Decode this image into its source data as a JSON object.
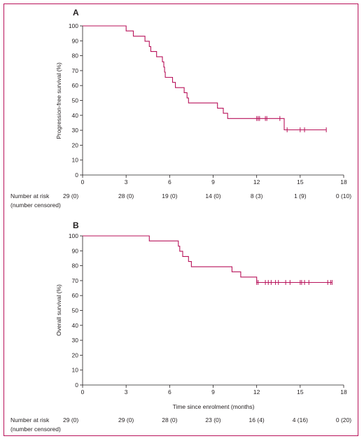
{
  "chart_data": [
    {
      "type": "line",
      "panel_label": "A",
      "xlabel": "",
      "ylabel": "Progression-free survival (%)",
      "xlim": [
        0,
        18
      ],
      "ylim": [
        0,
        100
      ],
      "x_ticks": [
        0,
        3,
        6,
        9,
        12,
        15,
        18
      ],
      "y_ticks": [
        0,
        10,
        20,
        30,
        40,
        50,
        60,
        70,
        80,
        90,
        100
      ],
      "series": [
        {
          "color": "#b8125a",
          "step_points": [
            [
              0,
              100
            ],
            [
              3.0,
              100
            ],
            [
              3.0,
              96.6
            ],
            [
              3.5,
              96.6
            ],
            [
              3.5,
              93.1
            ],
            [
              4.3,
              93.1
            ],
            [
              4.3,
              89.7
            ],
            [
              4.6,
              89.7
            ],
            [
              4.6,
              86.2
            ],
            [
              4.7,
              86.2
            ],
            [
              4.7,
              82.8
            ],
            [
              5.1,
              82.8
            ],
            [
              5.1,
              79.3
            ],
            [
              5.5,
              79.3
            ],
            [
              5.5,
              75.9
            ],
            [
              5.6,
              75.9
            ],
            [
              5.6,
              72.4
            ],
            [
              5.65,
              72.4
            ],
            [
              5.65,
              69.0
            ],
            [
              5.7,
              69.0
            ],
            [
              5.7,
              65.5
            ],
            [
              6.2,
              65.5
            ],
            [
              6.2,
              62.1
            ],
            [
              6.4,
              62.1
            ],
            [
              6.4,
              58.6
            ],
            [
              7.0,
              58.6
            ],
            [
              7.0,
              55.2
            ],
            [
              7.2,
              55.2
            ],
            [
              7.2,
              51.7
            ],
            [
              7.3,
              51.7
            ],
            [
              7.3,
              48.3
            ],
            [
              9.3,
              48.3
            ],
            [
              9.3,
              44.8
            ],
            [
              9.7,
              44.8
            ],
            [
              9.7,
              41.4
            ],
            [
              10.0,
              41.4
            ],
            [
              10.0,
              37.9
            ],
            [
              13.9,
              37.9
            ],
            [
              13.9,
              30.3
            ],
            [
              16.8,
              30.3
            ]
          ],
          "censor_times": [
            12.0,
            12.1,
            12.2,
            12.6,
            12.7,
            13.6,
            14.1,
            15.0,
            15.3,
            16.8
          ],
          "censor_values": [
            37.9,
            37.9,
            37.9,
            37.9,
            37.9,
            37.9,
            30.3,
            30.3,
            30.3,
            30.3
          ]
        }
      ],
      "risk_table": {
        "label_line1": "Number at risk",
        "label_line2": "(number censored)",
        "times": [
          0,
          3,
          6,
          9,
          12,
          15,
          18
        ],
        "values": [
          "29 (0)",
          "28 (0)",
          "19 (0)",
          "14 (0)",
          "8 (3)",
          "1 (9)",
          "0 (10)"
        ]
      }
    },
    {
      "type": "line",
      "panel_label": "B",
      "xlabel": "Time since enrolment (months)",
      "ylabel": "Overall survival (%)",
      "xlim": [
        0,
        18
      ],
      "ylim": [
        0,
        100
      ],
      "x_ticks": [
        0,
        3,
        6,
        9,
        12,
        15,
        18
      ],
      "y_ticks": [
        0,
        10,
        20,
        30,
        40,
        50,
        60,
        70,
        80,
        90,
        100
      ],
      "series": [
        {
          "color": "#b8125a",
          "step_points": [
            [
              0,
              100
            ],
            [
              4.6,
              100
            ],
            [
              4.6,
              96.6
            ],
            [
              6.6,
              96.6
            ],
            [
              6.6,
              93.1
            ],
            [
              6.7,
              93.1
            ],
            [
              6.7,
              89.7
            ],
            [
              6.9,
              89.7
            ],
            [
              6.9,
              86.2
            ],
            [
              7.3,
              86.2
            ],
            [
              7.3,
              82.8
            ],
            [
              7.5,
              82.8
            ],
            [
              7.5,
              79.3
            ],
            [
              10.3,
              79.3
            ],
            [
              10.3,
              75.9
            ],
            [
              10.9,
              75.9
            ],
            [
              10.9,
              72.4
            ],
            [
              12.0,
              72.4
            ],
            [
              12.0,
              68.8
            ],
            [
              17.2,
              68.8
            ]
          ],
          "censor_times": [
            12.0,
            12.1,
            12.6,
            12.8,
            13.0,
            13.3,
            13.5,
            14.0,
            14.3,
            15.0,
            15.1,
            15.3,
            15.6,
            16.9,
            17.1,
            17.2
          ],
          "censor_values": [
            68.8,
            68.8,
            68.8,
            68.8,
            68.8,
            68.8,
            68.8,
            68.8,
            68.8,
            68.8,
            68.8,
            68.8,
            68.8,
            68.8,
            68.8,
            68.8
          ]
        }
      ],
      "risk_table": {
        "label_line1": "Number at risk",
        "label_line2": "(number censored)",
        "times": [
          0,
          3,
          6,
          9,
          12,
          15,
          18
        ],
        "values": [
          "29 (0)",
          "29 (0)",
          "28 (0)",
          "23 (0)",
          "16 (4)",
          "4 (16)",
          "0 (20)"
        ]
      }
    }
  ]
}
